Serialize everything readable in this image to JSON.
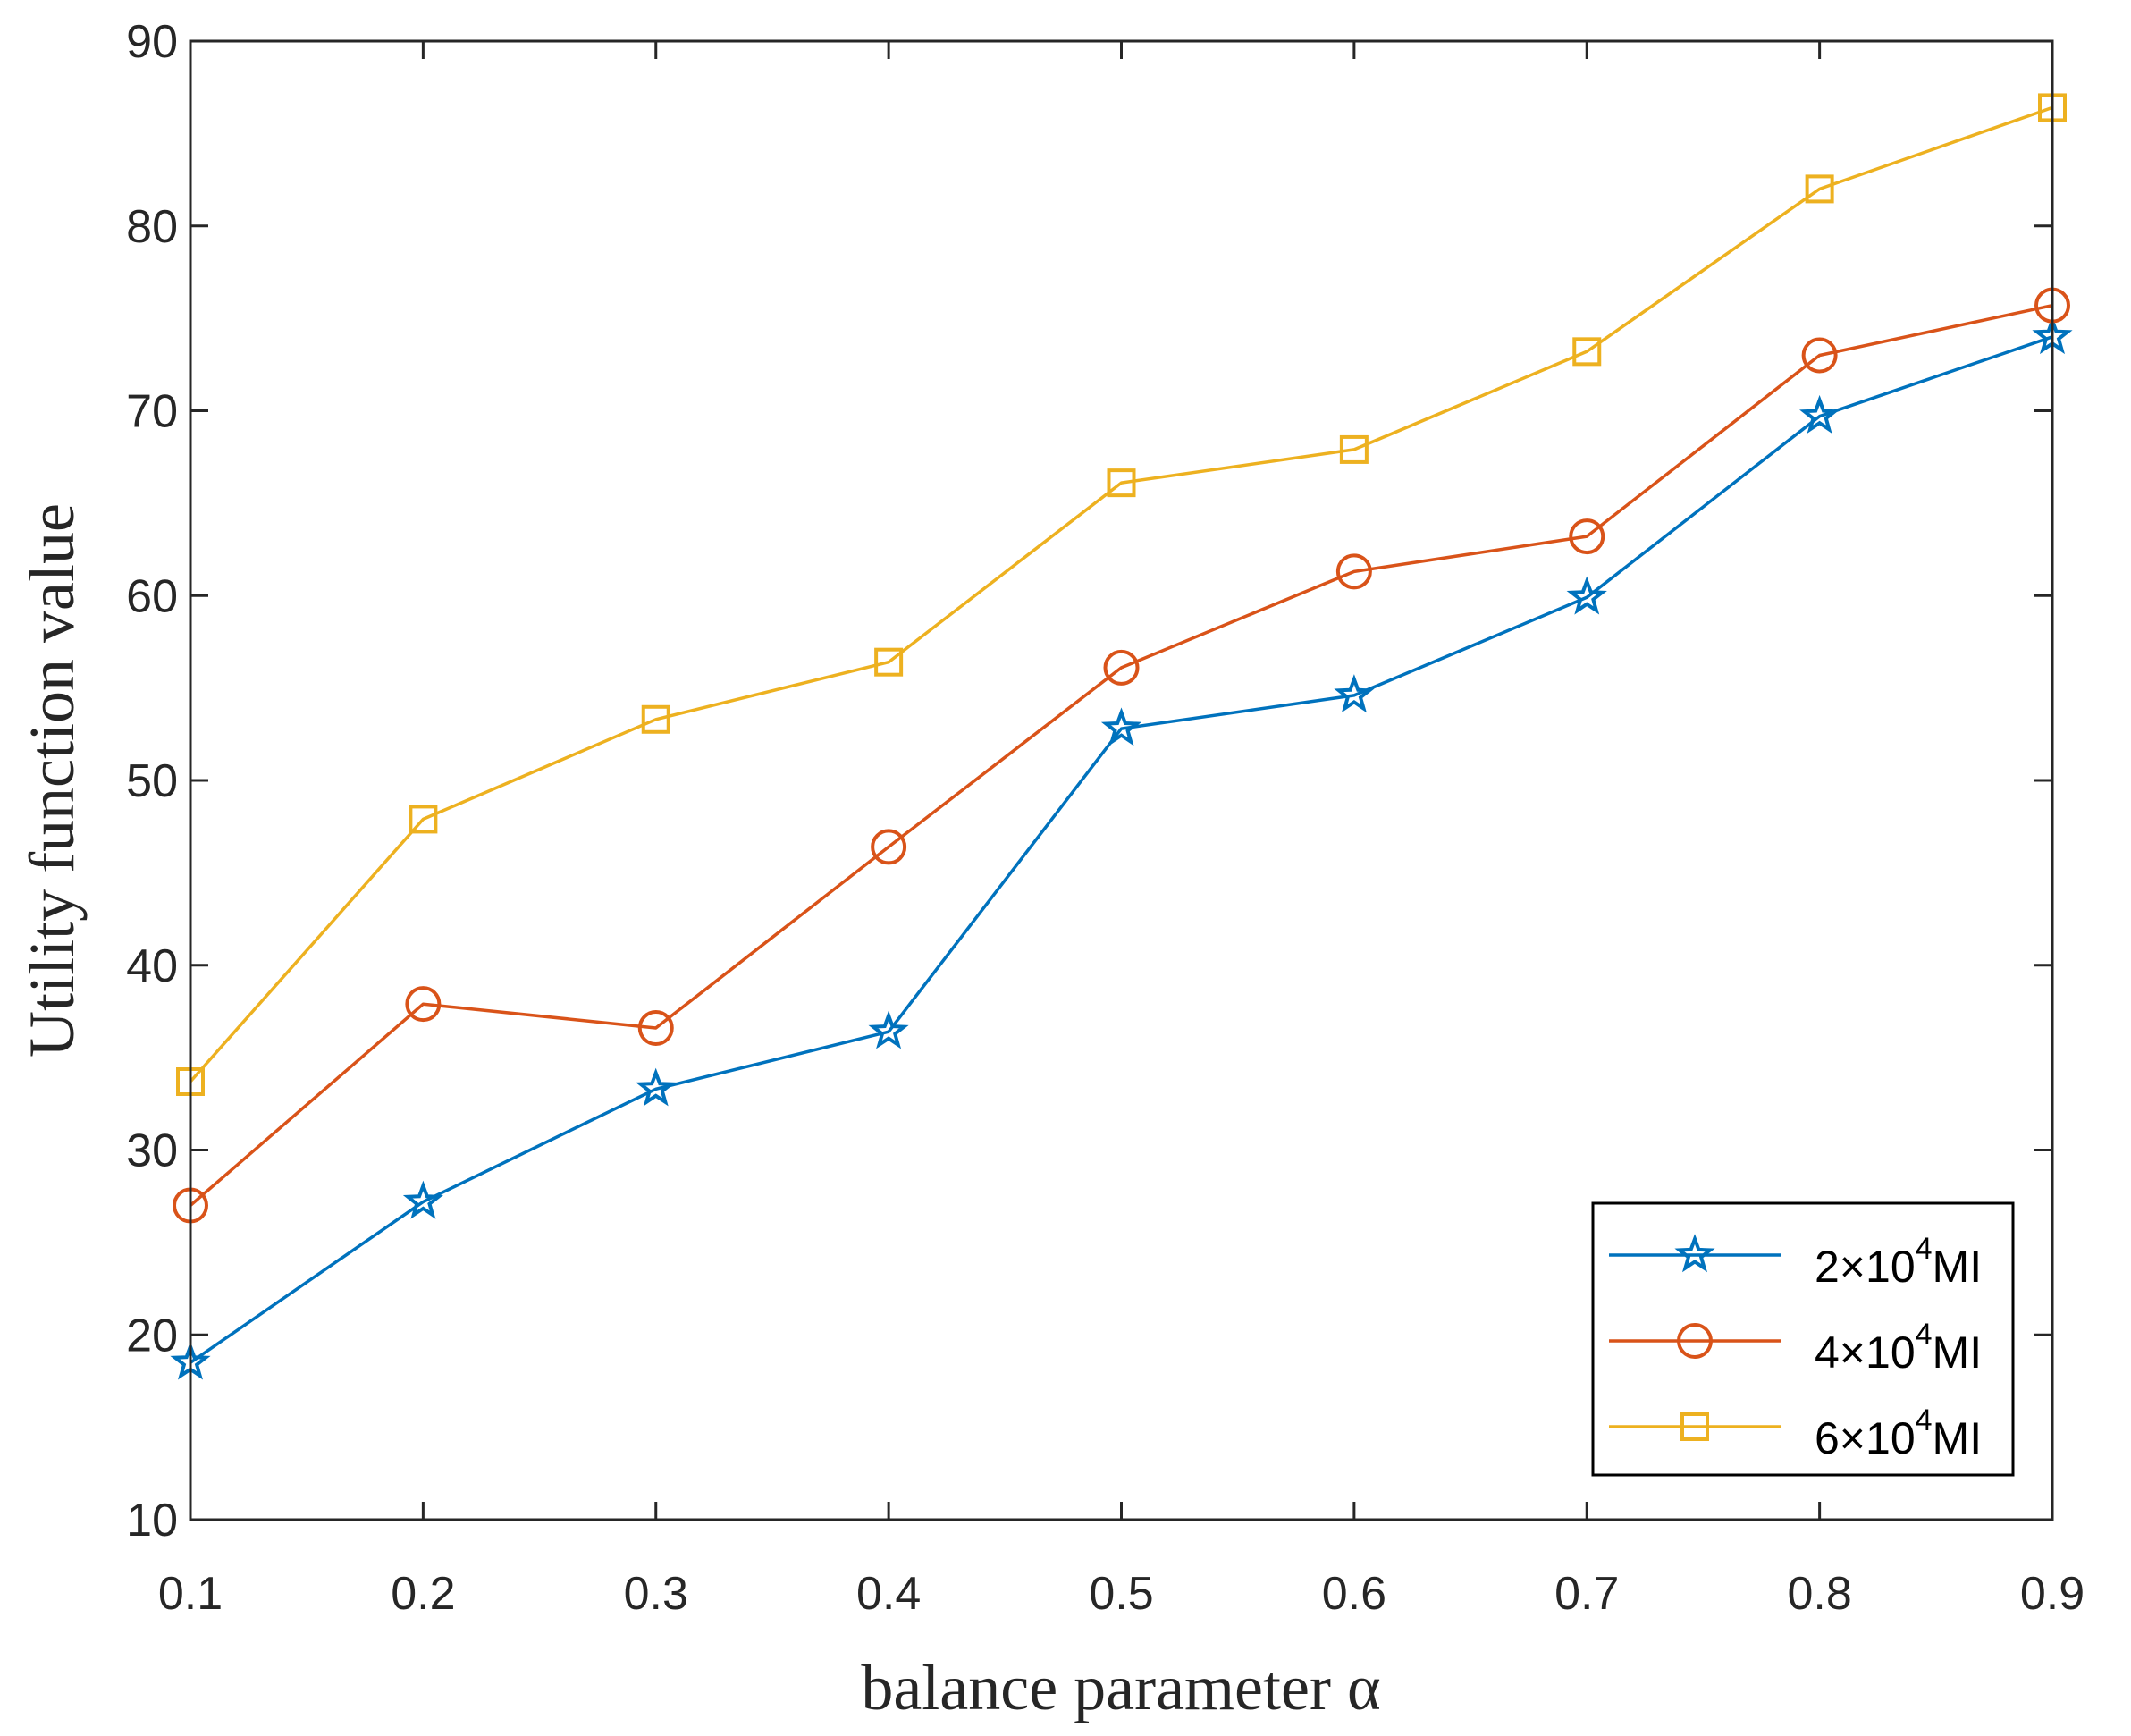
{
  "chart_data": {
    "type": "line",
    "title": "",
    "xlabel": "balance parameter α",
    "ylabel": "Utility function value",
    "x": [
      0.1,
      0.2,
      0.3,
      0.4,
      0.5,
      0.6,
      0.7,
      0.8,
      0.9
    ],
    "xlim": [
      0.1,
      0.9
    ],
    "ylim": [
      10,
      90
    ],
    "xticks": [
      "0.1",
      "0.2",
      "0.3",
      "0.4",
      "0.5",
      "0.6",
      "0.7",
      "0.8",
      "0.9"
    ],
    "yticks": [
      "10",
      "20",
      "30",
      "40",
      "50",
      "60",
      "70",
      "80",
      "90"
    ],
    "grid": false,
    "legend_position": "bottom-right",
    "series": [
      {
        "name": "2×10^4 MI",
        "legend_prefix": "2×10",
        "legend_exp": "4",
        "legend_unit": "MI",
        "marker": "star",
        "color": "#0072BD",
        "values": [
          18.5,
          27.2,
          33.3,
          36.4,
          52.8,
          54.6,
          59.9,
          69.7,
          74.0
        ]
      },
      {
        "name": "4×10^4 MI",
        "legend_prefix": "4×10",
        "legend_exp": "4",
        "legend_unit": "MI",
        "marker": "circle",
        "color": "#D95319",
        "values": [
          27.0,
          37.9,
          36.6,
          46.4,
          56.1,
          61.3,
          63.2,
          73.0,
          75.7
        ]
      },
      {
        "name": "6×10^4 MI",
        "legend_prefix": "6×10",
        "legend_exp": "4",
        "legend_unit": "MI",
        "marker": "square",
        "color": "#EDB120",
        "values": [
          33.7,
          47.9,
          53.3,
          56.4,
          66.1,
          67.9,
          73.2,
          82.0,
          86.4
        ]
      }
    ]
  }
}
